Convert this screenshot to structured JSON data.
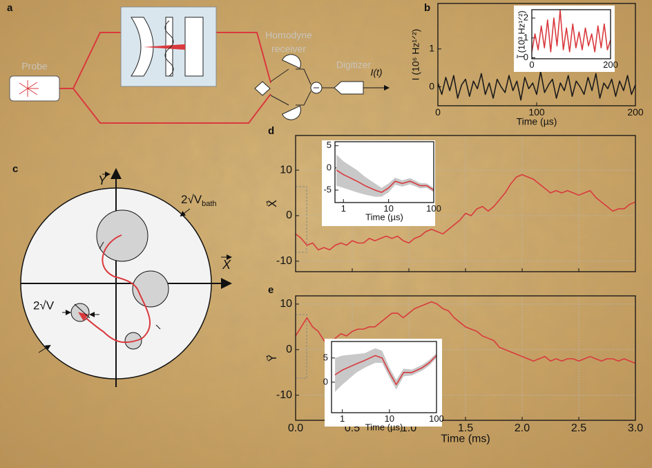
{
  "figure": {
    "panel_a": {
      "label": "a",
      "probe": "Probe",
      "receiver_line1": "Homodyne",
      "receiver_line2": "receiver",
      "digitizer": "Digitizer",
      "signal": "I(t)"
    },
    "panel_c": {
      "label": "c",
      "y_axis": "Y",
      "x_axis": "X",
      "bath_label": "2√V",
      "bath_subscript": "bath",
      "small_label": "2√V"
    }
  },
  "chart_data": [
    {
      "type": "line",
      "label": "b",
      "xlabel": "Time (µs)",
      "ylabel": "I (10⁶ Hz¹ᐟ²)",
      "x": [
        0,
        4,
        8,
        12,
        16,
        20,
        24,
        28,
        32,
        36,
        40,
        44,
        48,
        52,
        56,
        60,
        64,
        68,
        72,
        76,
        80,
        84,
        88,
        92,
        96,
        100,
        104,
        108,
        112,
        116,
        120,
        124,
        128,
        132,
        136,
        140,
        144,
        148,
        152,
        156,
        160,
        164,
        168,
        172,
        176,
        180,
        184,
        188,
        192,
        196,
        200
      ],
      "values": [
        0.1,
        -0.2,
        0.25,
        -0.1,
        0.3,
        -0.3,
        0.05,
        0.2,
        -0.25,
        0.15,
        -0.05,
        0.35,
        -0.2,
        0.1,
        -0.3,
        0.2,
        0.0,
        -0.15,
        0.3,
        -0.1,
        0.15,
        -0.35,
        0.25,
        -0.05,
        0.1,
        -0.2,
        0.4,
        -0.15,
        0.05,
        0.2,
        -0.3,
        0.1,
        -0.1,
        0.3,
        -0.25,
        0.15,
        0.0,
        -0.2,
        0.25,
        -0.1,
        0.35,
        -0.3,
        0.1,
        -0.05,
        0.2,
        -0.25,
        0.15,
        -0.1,
        0.3,
        -0.2,
        0.05
      ],
      "color": "#1a1a1a",
      "xlim": [
        0,
        200
      ],
      "ylim": [
        -0.5,
        2.2
      ],
      "xticks": [
        0,
        100,
        200
      ],
      "yticks": [
        0,
        1
      ]
    },
    {
      "type": "line",
      "ylabel": "Ĩ (10³ Hz¹ᐟ²)",
      "x": [
        0,
        8,
        16,
        24,
        32,
        40,
        48,
        56,
        64,
        72,
        80,
        88,
        96,
        104,
        112,
        120,
        128,
        136,
        144,
        152,
        160,
        168,
        176,
        184,
        192,
        200
      ],
      "values": [
        0.3,
        1.2,
        0.4,
        1.6,
        0.5,
        1.9,
        0.3,
        2.0,
        0.6,
        2.4,
        0.4,
        1.5,
        0.3,
        1.7,
        0.5,
        1.3,
        0.4,
        1.5,
        0.6,
        1.2,
        0.3,
        1.6,
        0.5,
        1.7,
        0.4,
        0.9
      ],
      "color": "#d9393d",
      "xlim": [
        0,
        200
      ],
      "ylim": [
        -0.05,
        2.42
      ],
      "xticks": [
        0,
        200
      ],
      "yticks": [
        0,
        1,
        2
      ]
    },
    {
      "type": "line",
      "label": "d",
      "ylabel": "X⃗",
      "x": [
        0,
        0.05,
        0.1,
        0.15,
        0.2,
        0.25,
        0.3,
        0.35,
        0.4,
        0.45,
        0.5,
        0.55,
        0.6,
        0.65,
        0.7,
        0.75,
        0.8,
        0.85,
        0.9,
        0.95,
        1.0,
        1.05,
        1.1,
        1.15,
        1.2,
        1.25,
        1.3,
        1.35,
        1.4,
        1.45,
        1.5,
        1.55,
        1.6,
        1.65,
        1.7,
        1.75,
        1.8,
        1.85,
        1.9,
        1.95,
        2.0,
        2.05,
        2.1,
        2.15,
        2.2,
        2.25,
        2.3,
        2.35,
        2.4,
        2.45,
        2.5,
        2.55,
        2.6,
        2.65,
        2.7,
        2.75,
        2.8,
        2.85,
        2.9,
        2.95,
        3.0
      ],
      "values": [
        -4,
        -5,
        -6.5,
        -6,
        -7.5,
        -7,
        -7.5,
        -6.5,
        -6,
        -6.5,
        -5.5,
        -6,
        -6,
        -5,
        -5.5,
        -5,
        -4.5,
        -5,
        -4.5,
        -5.5,
        -6,
        -5,
        -4.5,
        -3.5,
        -3,
        -3.5,
        -4,
        -3,
        -2,
        -1,
        0.5,
        0,
        1.5,
        2,
        1,
        2,
        3.5,
        5,
        7,
        8.5,
        9,
        8.5,
        8,
        7,
        6,
        5,
        5.5,
        5,
        5.5,
        5,
        4.5,
        5,
        5.5,
        4,
        3,
        2,
        1,
        1.5,
        1.5,
        2.5,
        3
      ],
      "color": "#d9393d",
      "xlim": [
        0,
        3
      ],
      "ylim": [
        -12.3,
        17.6
      ],
      "xticks": [
        0,
        0.5,
        1,
        1.5,
        2,
        2.5,
        3
      ],
      "show_xtick_labels": false,
      "yticks": [
        -10,
        0,
        10
      ],
      "grid": true
    },
    {
      "type": "line",
      "xlabel": "Time (µs)",
      "log_x": true,
      "x": [
        0.7,
        1,
        2,
        3,
        5,
        7,
        10,
        14,
        20,
        30,
        50,
        70,
        100
      ],
      "series": [
        {
          "color": "#d9393d",
          "values": [
            -0.5,
            -1.5,
            -3,
            -4,
            -5,
            -5.5,
            -4.5,
            -3,
            -3.5,
            -3,
            -4,
            -4,
            -5
          ]
        }
      ],
      "band": {
        "color": "#c8c8c8",
        "lower": [
          -4,
          -4.5,
          -5.5,
          -6,
          -6.5,
          -6.5,
          -5.5,
          -3.8,
          -4.2,
          -3.7,
          -4.6,
          -4.5,
          -5.5
        ],
        "upper": [
          3,
          1.5,
          -0.5,
          -2,
          -3.5,
          -4.5,
          -3.5,
          -2.2,
          -2.8,
          -2.3,
          -3.4,
          -3.5,
          -4.5
        ]
      },
      "xlim": [
        0.65,
        100
      ],
      "ylim": [
        -7.8,
        5.9
      ],
      "xticks": [
        1,
        10,
        100
      ],
      "yticks": [
        -5,
        0,
        5
      ]
    },
    {
      "type": "line",
      "label": "e",
      "xlabel": "Time (ms)",
      "ylabel": "Y⃗",
      "x": [
        0,
        0.05,
        0.1,
        0.15,
        0.2,
        0.25,
        0.3,
        0.35,
        0.4,
        0.45,
        0.5,
        0.55,
        0.6,
        0.65,
        0.7,
        0.75,
        0.8,
        0.85,
        0.9,
        0.95,
        1.0,
        1.05,
        1.1,
        1.15,
        1.2,
        1.25,
        1.3,
        1.35,
        1.4,
        1.45,
        1.5,
        1.55,
        1.6,
        1.65,
        1.7,
        1.75,
        1.8,
        1.85,
        1.9,
        1.95,
        2.0,
        2.05,
        2.1,
        2.15,
        2.2,
        2.25,
        2.3,
        2.35,
        2.4,
        2.45,
        2.5,
        2.55,
        2.6,
        2.65,
        2.7,
        2.75,
        2.8,
        2.85,
        2.9,
        2.95,
        3.0
      ],
      "values": [
        3,
        5,
        7,
        5,
        4,
        2,
        1.5,
        2.5,
        3.5,
        3,
        4,
        4.5,
        4.5,
        5,
        5,
        6,
        7,
        8,
        8,
        7,
        8,
        9,
        9.5,
        10,
        10.5,
        10,
        9,
        8.5,
        7,
        6,
        5,
        4.5,
        4,
        3,
        2.5,
        2,
        0.5,
        0,
        -0.5,
        -1,
        -1.5,
        -2,
        -2.5,
        -2,
        -1.5,
        -2.5,
        -2,
        -2.5,
        -2,
        -2,
        -2.5,
        -2,
        -1.5,
        -2,
        -2.5,
        -2,
        -2,
        -2.5,
        -2,
        -2.5,
        -3
      ],
      "color": "#d9393d",
      "xlim": [
        0,
        3
      ],
      "ylim": [
        -15.5,
        11.8
      ],
      "xticks": [
        {
          "value": 0,
          "label": "0.0"
        },
        0.5,
        {
          "value": 1,
          "label": "1.0"
        },
        1.5,
        {
          "value": 2,
          "label": "2.0"
        },
        2.5,
        {
          "value": 3,
          "label": "3.0"
        }
      ],
      "yticks": [
        -10,
        0,
        10
      ],
      "grid": true
    },
    {
      "type": "line",
      "xlabel": "Time (µs)",
      "log_x": true,
      "x": [
        0.7,
        1,
        2,
        3,
        5,
        7,
        10,
        14,
        20,
        30,
        50,
        70,
        100
      ],
      "series": [
        {
          "color": "#d9393d",
          "values": [
            1.5,
            2.5,
            3.8,
            4.5,
            5.5,
            5,
            2,
            -0.5,
            2,
            2,
            3,
            4,
            5.5
          ]
        }
      ],
      "band": {
        "color": "#c8c8c8",
        "lower": [
          -2,
          -0.5,
          2,
          3,
          4,
          4,
          1,
          -1.5,
          1.2,
          1.4,
          2.4,
          3.4,
          5
        ],
        "upper": [
          5,
          5.5,
          5.8,
          6,
          7,
          6.5,
          3,
          0.5,
          2.8,
          2.6,
          3.6,
          4.6,
          6
        ]
      },
      "xlim": [
        0.59,
        100
      ],
      "ylim": [
        -6.3,
        8.4
      ],
      "xticks": [
        1,
        10,
        100
      ],
      "yticks": [
        0,
        5
      ]
    }
  ]
}
